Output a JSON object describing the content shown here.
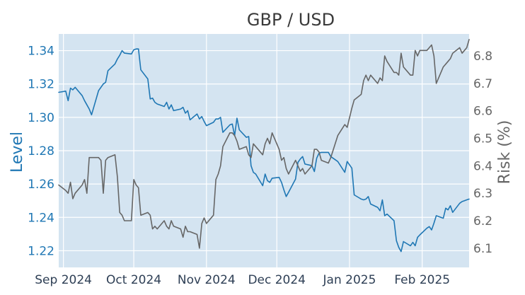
{
  "chart_data": {
    "type": "line",
    "title": "GBP / USD",
    "y_left": {
      "label": "Level",
      "color": "#1f77b4",
      "ylim": [
        1.21,
        1.35
      ],
      "ticks": [
        "1.22",
        "1.24",
        "1.26",
        "1.28",
        "1.30",
        "1.32",
        "1.34"
      ]
    },
    "y_right": {
      "label": "Risk (%)",
      "color": "#666666",
      "ylim": [
        6.03,
        6.88
      ],
      "ticks": [
        "6.1",
        "6.2",
        "6.3",
        "6.4",
        "6.5",
        "6.6",
        "6.7",
        "6.8"
      ]
    },
    "x_ticks": [
      "Sep 2024",
      "Oct 2024",
      "Nov 2024",
      "Dec 2024",
      "Jan 2025",
      "Feb 2025"
    ],
    "x_range": [
      "2024-08-30",
      "2025-02-21"
    ],
    "grid": true,
    "plot_background": "#d4e4f1",
    "series": [
      {
        "axis": "left",
        "color": "#1f77b4",
        "dates": [
          "2024-08-30",
          "2024-09-02",
          "2024-09-03",
          "2024-09-04",
          "2024-09-05",
          "2024-09-06",
          "2024-09-09",
          "2024-09-10",
          "2024-09-11",
          "2024-09-12",
          "2024-09-13",
          "2024-09-16",
          "2024-09-17",
          "2024-09-18",
          "2024-09-19",
          "2024-09-20",
          "2024-09-23",
          "2024-09-24",
          "2024-09-25",
          "2024-09-26",
          "2024-09-27",
          "2024-09-30",
          "2024-10-01",
          "2024-10-02",
          "2024-10-03",
          "2024-10-04",
          "2024-10-07",
          "2024-10-08",
          "2024-10-09",
          "2024-10-10",
          "2024-10-11",
          "2024-10-14",
          "2024-10-15",
          "2024-10-16",
          "2024-10-17",
          "2024-10-18",
          "2024-10-21",
          "2024-10-22",
          "2024-10-23",
          "2024-10-24",
          "2024-10-25",
          "2024-10-28",
          "2024-10-29",
          "2024-10-30",
          "2024-10-31",
          "2024-11-01",
          "2024-11-04",
          "2024-11-05",
          "2024-11-06",
          "2024-11-07",
          "2024-11-08",
          "2024-11-11",
          "2024-11-12",
          "2024-11-13",
          "2024-11-14",
          "2024-11-15",
          "2024-11-18",
          "2024-11-19",
          "2024-11-20",
          "2024-11-21",
          "2024-11-22",
          "2024-11-25",
          "2024-11-26",
          "2024-11-27",
          "2024-11-28",
          "2024-11-29",
          "2024-12-02",
          "2024-12-03",
          "2024-12-04",
          "2024-12-05",
          "2024-12-06",
          "2024-12-09",
          "2024-12-10",
          "2024-12-11",
          "2024-12-12",
          "2024-12-13",
          "2024-12-16",
          "2024-12-17",
          "2024-12-18",
          "2024-12-19",
          "2024-12-20",
          "2024-12-23",
          "2024-12-24",
          "2024-12-27",
          "2024-12-30",
          "2024-12-31",
          "2025-01-02",
          "2025-01-03",
          "2025-01-06",
          "2025-01-07",
          "2025-01-08",
          "2025-01-09",
          "2025-01-10",
          "2025-01-13",
          "2025-01-14",
          "2025-01-15",
          "2025-01-16",
          "2025-01-17",
          "2025-01-20",
          "2025-01-21",
          "2025-01-22",
          "2025-01-23",
          "2025-01-24",
          "2025-01-27",
          "2025-01-28",
          "2025-01-29",
          "2025-01-30",
          "2025-01-31",
          "2025-02-03",
          "2025-02-04",
          "2025-02-05",
          "2025-02-06",
          "2025-02-07",
          "2025-02-10",
          "2025-02-11",
          "2025-02-12",
          "2025-02-13",
          "2025-02-14",
          "2025-02-17",
          "2025-02-18",
          "2025-02-19",
          "2025-02-20",
          "2025-02-21"
        ],
        "values": [
          1.315,
          1.3157,
          1.31,
          1.3175,
          1.3165,
          1.318,
          1.313,
          1.31,
          1.3075,
          1.305,
          1.3015,
          1.316,
          1.318,
          1.32,
          1.321,
          1.328,
          1.332,
          1.335,
          1.3372,
          1.34,
          1.3385,
          1.338,
          1.3405,
          1.341,
          1.341,
          1.3285,
          1.323,
          1.311,
          1.3115,
          1.309,
          1.308,
          1.3065,
          1.309,
          1.305,
          1.3075,
          1.304,
          1.305,
          1.306,
          1.3025,
          1.304,
          1.2985,
          1.302,
          1.299,
          1.3005,
          1.2975,
          1.295,
          1.297,
          1.299,
          1.299,
          1.3,
          1.291,
          1.2955,
          1.296,
          1.289,
          1.2995,
          1.2925,
          1.288,
          1.2885,
          1.271,
          1.267,
          1.266,
          1.259,
          1.266,
          1.262,
          1.261,
          1.2635,
          1.264,
          1.261,
          1.2565,
          1.2525,
          1.255,
          1.263,
          1.273,
          1.275,
          1.2765,
          1.272,
          1.271,
          1.2675,
          1.2755,
          1.2785,
          1.279,
          1.279,
          1.2765,
          1.2735,
          1.267,
          1.2735,
          1.2695,
          1.2535,
          1.251,
          1.2505,
          1.251,
          1.2525,
          1.248,
          1.246,
          1.244,
          1.2505,
          1.241,
          1.242,
          1.238,
          1.226,
          1.222,
          1.2195,
          1.2255,
          1.223,
          1.225,
          1.223,
          1.228,
          1.2295,
          1.2335,
          1.2345,
          1.2325,
          1.2365,
          1.241,
          1.2395,
          1.2455,
          1.2445,
          1.247,
          1.243,
          1.2485,
          1.2495,
          1.25,
          1.2505,
          1.251
        ],
        "note_series": "GBP/USD level"
      },
      {
        "axis": "right",
        "color": "#666666",
        "dates": [
          "2024-08-30",
          "2024-09-02",
          "2024-09-03",
          "2024-09-04",
          "2024-09-05",
          "2024-09-06",
          "2024-09-09",
          "2024-09-10",
          "2024-09-11",
          "2024-09-12",
          "2024-09-13",
          "2024-09-16",
          "2024-09-17",
          "2024-09-18",
          "2024-09-19",
          "2024-09-20",
          "2024-09-23",
          "2024-09-24",
          "2024-09-25",
          "2024-09-26",
          "2024-09-27",
          "2024-09-30",
          "2024-10-01",
          "2024-10-02",
          "2024-10-03",
          "2024-10-04",
          "2024-10-07",
          "2024-10-08",
          "2024-10-09",
          "2024-10-10",
          "2024-10-11",
          "2024-10-14",
          "2024-10-15",
          "2024-10-16",
          "2024-10-17",
          "2024-10-18",
          "2024-10-21",
          "2024-10-22",
          "2024-10-23",
          "2024-10-24",
          "2024-10-25",
          "2024-10-28",
          "2024-10-29",
          "2024-10-30",
          "2024-10-31",
          "2024-11-01",
          "2024-11-04",
          "2024-11-05",
          "2024-11-06",
          "2024-11-07",
          "2024-11-08",
          "2024-11-11",
          "2024-11-12",
          "2024-11-13",
          "2024-11-14",
          "2024-11-15",
          "2024-11-18",
          "2024-11-19",
          "2024-11-20",
          "2024-11-21",
          "2024-11-22",
          "2024-11-25",
          "2024-11-26",
          "2024-11-27",
          "2024-11-28",
          "2024-11-29",
          "2024-12-02",
          "2024-12-03",
          "2024-12-04",
          "2024-12-05",
          "2024-12-06",
          "2024-12-09",
          "2024-12-10",
          "2024-12-11",
          "2024-12-12",
          "2024-12-13",
          "2024-12-16",
          "2024-12-17",
          "2024-12-18",
          "2024-12-19",
          "2024-12-20",
          "2024-12-23",
          "2024-12-24",
          "2024-12-27",
          "2024-12-30",
          "2024-12-31",
          "2025-01-02",
          "2025-01-03",
          "2025-01-06",
          "2025-01-07",
          "2025-01-08",
          "2025-01-09",
          "2025-01-10",
          "2025-01-13",
          "2025-01-14",
          "2025-01-15",
          "2025-01-16",
          "2025-01-17",
          "2025-01-20",
          "2025-01-21",
          "2025-01-22",
          "2025-01-23",
          "2025-01-24",
          "2025-01-27",
          "2025-01-28",
          "2025-01-29",
          "2025-01-30",
          "2025-01-31",
          "2025-02-03",
          "2025-02-04",
          "2025-02-05",
          "2025-02-06",
          "2025-02-07",
          "2025-02-10",
          "2025-02-11",
          "2025-02-12",
          "2025-02-13",
          "2025-02-14",
          "2025-02-17",
          "2025-02-18",
          "2025-02-19",
          "2025-02-20",
          "2025-02-21"
        ],
        "values": [
          6.33,
          6.31,
          6.3,
          6.34,
          6.28,
          6.3,
          6.33,
          6.35,
          6.3,
          6.43,
          6.43,
          6.43,
          6.42,
          6.3,
          6.42,
          6.43,
          6.44,
          6.36,
          6.23,
          6.22,
          6.2,
          6.2,
          6.35,
          6.33,
          6.32,
          6.22,
          6.23,
          6.22,
          6.17,
          6.18,
          6.17,
          6.2,
          6.18,
          6.17,
          6.2,
          6.18,
          6.17,
          6.14,
          6.18,
          6.16,
          6.16,
          6.15,
          6.1,
          6.19,
          6.21,
          6.19,
          6.22,
          6.35,
          6.37,
          6.4,
          6.47,
          6.52,
          6.52,
          6.51,
          6.49,
          6.46,
          6.47,
          6.44,
          6.43,
          6.48,
          6.47,
          6.44,
          6.48,
          6.5,
          6.48,
          6.52,
          6.46,
          6.42,
          6.43,
          6.39,
          6.37,
          6.42,
          6.4,
          6.38,
          6.39,
          6.37,
          6.4,
          6.46,
          6.46,
          6.45,
          6.42,
          6.41,
          6.43,
          6.51,
          6.55,
          6.54,
          6.61,
          6.64,
          6.66,
          6.71,
          6.73,
          6.71,
          6.73,
          6.7,
          6.72,
          6.71,
          6.8,
          6.78,
          6.74,
          6.74,
          6.73,
          6.81,
          6.76,
          6.73,
          6.73,
          6.82,
          6.8,
          6.82,
          6.82,
          6.83,
          6.84,
          6.8,
          6.7,
          6.76,
          6.77,
          6.78,
          6.79,
          6.81,
          6.83,
          6.81,
          6.82,
          6.83,
          6.86
        ],
        "note_series": "Risk (%)"
      }
    ]
  }
}
